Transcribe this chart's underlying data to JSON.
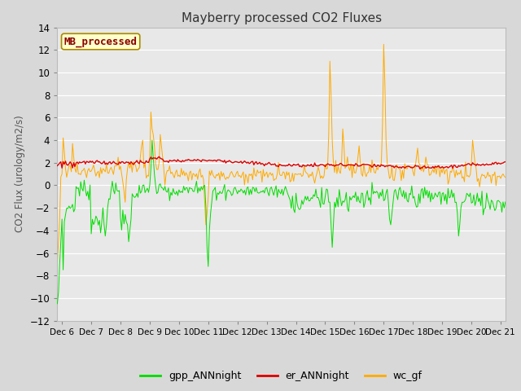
{
  "title": "Mayberry processed CO2 Fluxes",
  "ylabel": "CO2 Flux (urology/m2/s)",
  "ylim": [
    -12,
    14
  ],
  "yticks": [
    -12,
    -10,
    -8,
    -6,
    -4,
    -2,
    0,
    2,
    4,
    6,
    8,
    10,
    12,
    14
  ],
  "fig_bg_color": "#d8d8d8",
  "plot_bg": "#e8e8e8",
  "grid_color": "#ffffff",
  "colors": {
    "gpp": "#00dd00",
    "er": "#dd0000",
    "wc": "#ffaa00"
  },
  "legend_labels": [
    "gpp_ANNnight",
    "er_ANNnight",
    "wc_gf"
  ],
  "watermark_text": "MB_processed",
  "watermark_color": "#8b0000",
  "watermark_bg": "#ffffcc",
  "watermark_border": "#aa8800",
  "n_points": 384,
  "x_start": 5.83,
  "x_end": 21.17,
  "xtick_positions": [
    6,
    7,
    8,
    9,
    10,
    11,
    12,
    13,
    14,
    15,
    16,
    17,
    18,
    19,
    20,
    21
  ],
  "xtick_labels": [
    "Dec 6",
    "Dec 7",
    "Dec 8",
    "Dec 9",
    "Dec 10",
    "Dec 11",
    "Dec 12",
    "Dec 13",
    "Dec 14",
    "Dec 15",
    "Dec 16",
    "Dec 17",
    "Dec 18",
    "Dec 19",
    "Dec 20",
    "Dec 21"
  ]
}
